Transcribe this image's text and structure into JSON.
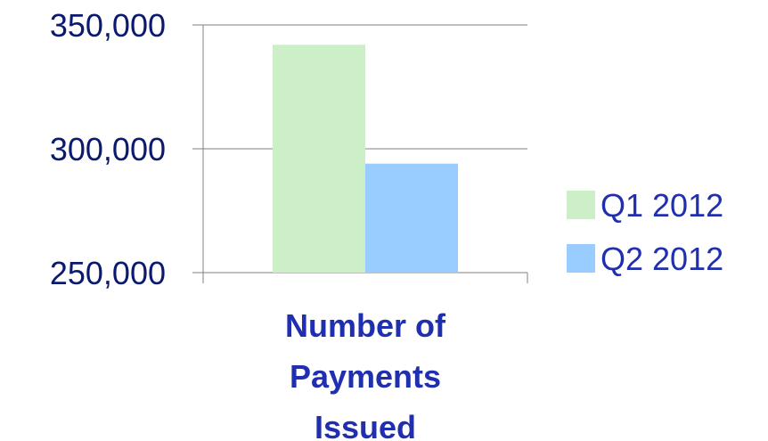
{
  "chart_data": {
    "type": "bar",
    "categories": [
      "Number of Payments Issued"
    ],
    "category_label_lines": [
      "Number of",
      "Payments",
      "Issued"
    ],
    "series": [
      {
        "name": "Q1 2012",
        "values": [
          342000
        ],
        "color": "#ccefc8"
      },
      {
        "name": "Q2 2012",
        "values": [
          294000
        ],
        "color": "#99ccff"
      }
    ],
    "ylim": [
      250000,
      350000
    ],
    "y_ticks": [
      250000,
      300000,
      350000
    ],
    "y_tick_labels": [
      "250,000",
      "300,000",
      "350,000"
    ],
    "grid": true,
    "legend_position": "right",
    "title": "",
    "xlabel": "",
    "ylabel": ""
  }
}
